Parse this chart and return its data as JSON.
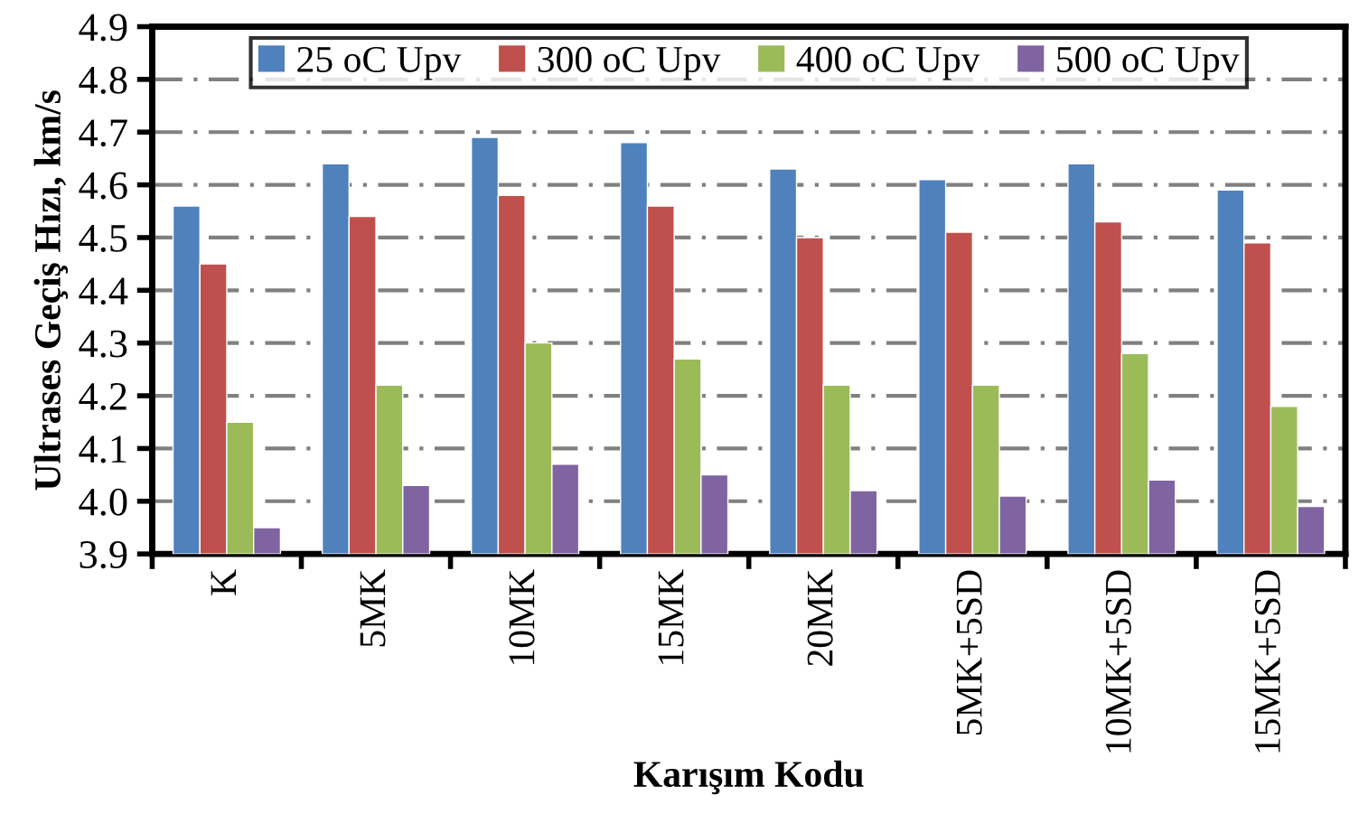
{
  "chart_data": {
    "type": "bar",
    "xlabel": "Karışım Kodu",
    "ylabel": "Ultrases Geçiş Hızı, km/s",
    "categories": [
      "K",
      "5MK",
      "10MK",
      "15MK",
      "20MK",
      "5MK+5SD",
      "10MK+5SD",
      "15MK+5SD"
    ],
    "series": [
      {
        "name": "25 oC Upv",
        "color": "#4f81bd",
        "values": [
          4.56,
          4.64,
          4.69,
          4.68,
          4.63,
          4.61,
          4.64,
          4.59
        ]
      },
      {
        "name": "300 oC Upv",
        "color": "#c0504d",
        "values": [
          4.45,
          4.54,
          4.58,
          4.56,
          4.5,
          4.51,
          4.53,
          4.49
        ]
      },
      {
        "name": "400 oC Upv",
        "color": "#9bbb59",
        "values": [
          4.15,
          4.22,
          4.3,
          4.27,
          4.22,
          4.22,
          4.28,
          4.18
        ]
      },
      {
        "name": "500 oC Upv",
        "color": "#8064a2",
        "values": [
          3.95,
          4.03,
          4.07,
          4.05,
          4.02,
          4.01,
          4.04,
          3.99
        ]
      }
    ],
    "ylim": [
      3.9,
      4.9
    ],
    "yticks": [
      {
        "value": 3.9,
        "label": "3.9"
      },
      {
        "value": 4.0,
        "label": "4.0"
      },
      {
        "value": 4.1,
        "label": "4.1"
      },
      {
        "value": 4.2,
        "label": "4.2"
      },
      {
        "value": 4.3,
        "label": "4.3"
      },
      {
        "value": 4.4,
        "label": "4.4"
      },
      {
        "value": 4.5,
        "label": "4.5"
      },
      {
        "value": 4.6,
        "label": "4.6"
      },
      {
        "value": 4.7,
        "label": "4.7"
      },
      {
        "value": 4.8,
        "label": "4.8"
      },
      {
        "value": 4.9,
        "label": "4.9"
      }
    ],
    "grid": "y",
    "legend": "top"
  }
}
